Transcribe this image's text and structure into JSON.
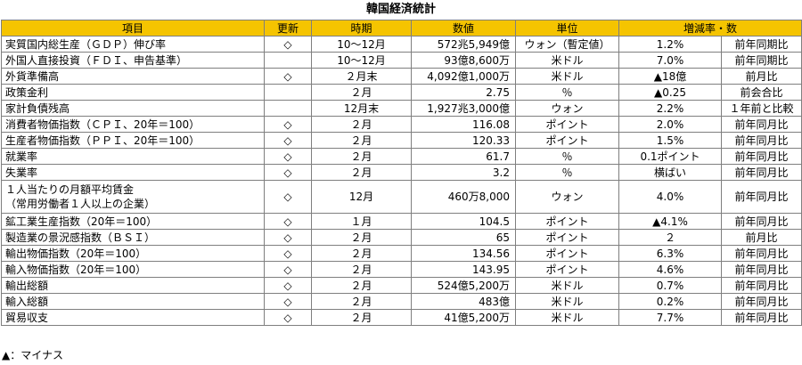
{
  "title": "韓国経済統計",
  "headers": {
    "item": "項目",
    "update": "更新",
    "period": "時期",
    "value": "数値",
    "unit": "単位",
    "rate": "増減率・数"
  },
  "rows": [
    {
      "item": "実質国内総生産（ＧＤＰ）伸び率",
      "update": "◇",
      "period": "10〜12月",
      "value": "572兆5,949億",
      "unit": "ウォン（暫定値）",
      "rate": "1.2%",
      "comparison": "前年同期比"
    },
    {
      "item": "外国人直接投資（ＦＤＩ、申告基準）",
      "update": "",
      "period": "10〜12月",
      "value": "93億8,600万",
      "unit": "米ドル",
      "rate": "7.0%",
      "comparison": "前年同期比"
    },
    {
      "item": "外貨準備高",
      "update": "◇",
      "period": "２月末",
      "value": "4,092億1,000万",
      "unit": "米ドル",
      "rate": "▲18億",
      "comparison": "前月比"
    },
    {
      "item": "政策金利",
      "update": "",
      "period": "２月",
      "value": "2.75",
      "unit": "％",
      "rate": "▲0.25",
      "comparison": "前会合比"
    },
    {
      "item": "家計負債残高",
      "update": "",
      "period": "12月末",
      "value": "1,927兆3,000億",
      "unit": "ウォン",
      "rate": "2.2%",
      "comparison": "１年前と比較"
    },
    {
      "item": "消費者物価指数（ＣＰＩ、20年＝100）",
      "update": "◇",
      "period": "２月",
      "value": "116.08",
      "unit": "ポイント",
      "rate": "2.0%",
      "comparison": "前年同月比"
    },
    {
      "item": "生産者物価指数（ＰＰＩ、20年＝100）",
      "update": "◇",
      "period": "２月",
      "value": "120.33",
      "unit": "ポイント",
      "rate": "1.5%",
      "comparison": "前年同月比"
    },
    {
      "item": "就業率",
      "update": "◇",
      "period": "２月",
      "value": "61.7",
      "unit": "％",
      "rate": "0.1ポイント",
      "comparison": "前年同月比"
    },
    {
      "item": "失業率",
      "update": "◇",
      "period": "２月",
      "value": "3.2",
      "unit": "％",
      "rate": "横ばい",
      "comparison": "前年同月比"
    },
    {
      "item": "１人当たりの月額平均賃金",
      "item2": "（常用労働者１人以上の企業）",
      "update": "◇",
      "period": "12月",
      "value": "460万8,000",
      "unit": "ウォン",
      "rate": "4.0%",
      "comparison": "前年同月比"
    },
    {
      "item": "鉱工業生産指数（20年＝100）",
      "update": "◇",
      "period": "１月",
      "value": "104.5",
      "unit": "ポイント",
      "rate": "▲4.1%",
      "comparison": "前年同月比"
    },
    {
      "item": "製造業の景況感指数（ＢＳＩ）",
      "update": "◇",
      "period": "２月",
      "value": "65",
      "unit": "ポイント",
      "rate": "２",
      "comparison": "前月比"
    },
    {
      "item": "輸出物価指数（20年＝100）",
      "update": "◇",
      "period": "２月",
      "value": "134.56",
      "unit": "ポイント",
      "rate": "6.3%",
      "comparison": "前年同月比"
    },
    {
      "item": "輸入物価指数（20年＝100）",
      "update": "◇",
      "period": "２月",
      "value": "143.95",
      "unit": "ポイント",
      "rate": "4.6%",
      "comparison": "前年同月比"
    },
    {
      "item": "輸出総額",
      "update": "◇",
      "period": "２月",
      "value": "524億5,200万",
      "unit": "米ドル",
      "rate": "0.7%",
      "comparison": "前年同月比"
    },
    {
      "item": "輸入総額",
      "update": "◇",
      "period": "２月",
      "value": "483億",
      "unit": "米ドル",
      "rate": "0.2%",
      "comparison": "前年同月比"
    },
    {
      "item": "貿易収支",
      "update": "◇",
      "period": "２月",
      "value": "41億5,200万",
      "unit": "米ドル",
      "rate": "7.7%",
      "comparison": "前年同月比"
    }
  ],
  "note": "▲：マイナス",
  "colors": {
    "header_bg": "#f5c400",
    "border": "#7f7f7f"
  }
}
